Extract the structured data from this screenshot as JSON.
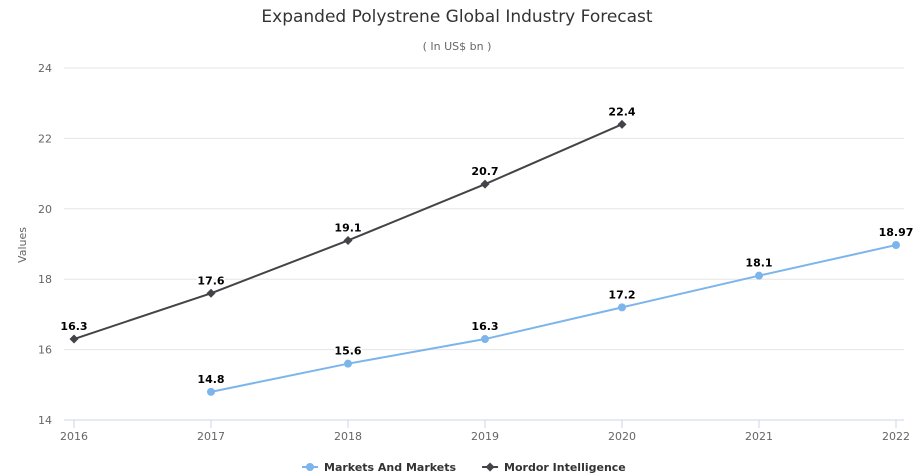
{
  "chart_data": {
    "type": "line",
    "title": "Expanded Polystrene Global Industry Forecast",
    "subtitle": "( In US$ bn )",
    "ylabel": "Values",
    "xlabel": "",
    "ylim": [
      14,
      24
    ],
    "yticks": [
      14,
      16,
      18,
      20,
      22,
      24
    ],
    "categories": [
      "2016",
      "2017",
      "2018",
      "2019",
      "2020",
      "2021",
      "2022"
    ],
    "grid": true,
    "legend_position": "bottom-center",
    "series": [
      {
        "name": "Markets And Markets",
        "color": "#7cb5ec",
        "marker": "circle",
        "values": [
          null,
          14.8,
          15.6,
          16.3,
          17.2,
          18.1,
          18.97
        ],
        "labels": [
          "",
          "14.8",
          "15.6",
          "16.3",
          "17.2",
          "18.1",
          "18.97"
        ]
      },
      {
        "name": "Mordor Intelligence",
        "color": "#434348",
        "marker": "diamond",
        "values": [
          16.3,
          17.6,
          19.1,
          20.7,
          22.4,
          null,
          null
        ],
        "labels": [
          "16.3",
          "17.6",
          "19.1",
          "20.7",
          "22.4",
          "",
          ""
        ]
      }
    ]
  }
}
